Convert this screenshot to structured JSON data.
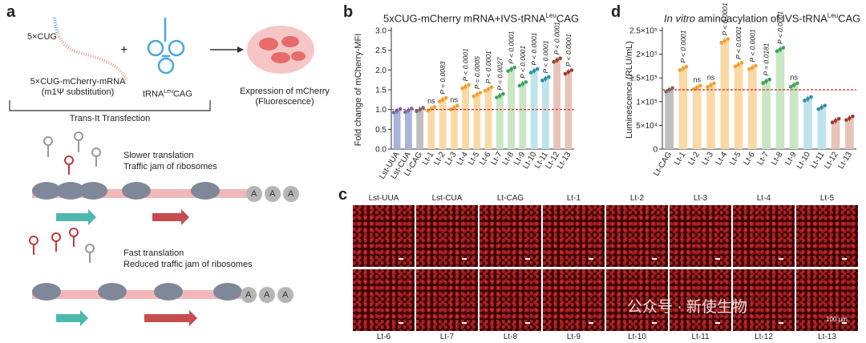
{
  "panels": {
    "a": "a",
    "b": "b",
    "c": "c",
    "d": "d"
  },
  "panel_a": {
    "mrna_label": "5×CUG",
    "mrna_name": "5×CUG-mCherry-mRNA",
    "mrna_sub": "(m1Ψ substitution)",
    "plus": "+",
    "trna": "tRNA",
    "trna_sup": "Leu",
    "trna_suffix": "CAG",
    "expression_line1": "Expression of mCherry",
    "expression_line2": "(Fluorescence)",
    "transfection": "Trans-It Transfection",
    "slow_line1": "Slower translation",
    "slow_line2": "Traffic jam of ribosomes",
    "fast_line1": "Fast translation",
    "fast_line2": "Reduced traffic jam of ribosomes",
    "polya": [
      "A",
      "A",
      "A"
    ]
  },
  "panel_c": {
    "top_labels": [
      "Lst-UUA",
      "Lst-CUA",
      "Lt-CAG",
      "Lt-1",
      "Lt-2",
      "Lt-3",
      "Lt-4",
      "Lt-5"
    ],
    "bottom_labels": [
      "Lt-6",
      "Lt-7",
      "Lt-8",
      "Lt-9",
      "Lt-10",
      "Lt-11",
      "Lt-12",
      "Lt-13"
    ],
    "scale_bar": "100 μm",
    "watermark": "公众号 · 新使生物"
  },
  "chart_data": [
    {
      "type": "bar",
      "title_prefix": "5xCUG-mCherry mRNA+IVS-tRNA",
      "title_sup": "Leu",
      "title_suffix": "CAG",
      "ylabel": "Fold change of mCherry-MFI",
      "ylim": [
        0,
        3.0
      ],
      "yticks": [
        "0.0",
        "0.5",
        "1.0",
        "1.5",
        "2.0",
        "2.5",
        "3.0"
      ],
      "reference_line": 1.0,
      "categories": [
        "Lst-UUA",
        "Lst-CUA",
        "Lt-CAG",
        "Lt-1",
        "Lt-2",
        "Lt-3",
        "Lt-4",
        "Lt-5",
        "Lt-6",
        "Lt-7",
        "Lt-8",
        "Lt-9",
        "Lt-10",
        "Lt-11",
        "Lt-12",
        "Lt-13"
      ],
      "values": [
        0.97,
        0.98,
        1.0,
        1.02,
        1.25,
        1.05,
        1.58,
        1.38,
        1.52,
        1.35,
        2.02,
        1.65,
        1.98,
        1.78,
        2.25,
        1.95
      ],
      "annotations": [
        "",
        "",
        "",
        "ns",
        "P = 0.0083",
        "ns",
        "P < 0.0001",
        "P = 0.0005",
        "P < 0.0001",
        "P = 0.0027",
        "P < 0.0001",
        "P < 0.0001",
        "P < 0.0001",
        "P < 0.0001",
        "P < 0.0001",
        "P < 0.0001"
      ],
      "colors": [
        "#a9b3dc",
        "#a9b3dc",
        "#bfbfbf",
        "#fbd9a7",
        "#fbd9a7",
        "#fbd9a7",
        "#fbd9a7",
        "#fbd9a7",
        "#fbd9a7",
        "#c9e6c5",
        "#c9e6c5",
        "#c9e6c5",
        "#bfe3ea",
        "#bfe3ea",
        "#e8c4b8",
        "#e8c4b8"
      ],
      "point_colors": [
        "#6b6fb0",
        "#6b6fb0",
        "#6e6e6e",
        "#f0a030",
        "#f0a030",
        "#f0a030",
        "#f0a030",
        "#f0a030",
        "#f0a030",
        "#3aa35a",
        "#3aa35a",
        "#3aa35a",
        "#2f8fa5",
        "#2f8fa5",
        "#9e3b2a",
        "#9e3b2a"
      ]
    },
    {
      "type": "bar",
      "title_italic": "In vitro",
      "title_prefix": " aminoacylation of IVS-tRNA",
      "title_sup": "Leu",
      "title_suffix": "CAG",
      "ylabel": "Luminescence (RLU/mL)",
      "ylim": [
        0,
        250000
      ],
      "yticks": [
        "0",
        "5×10⁴",
        "1×10⁵",
        "1.5×10⁵",
        "2×10⁵",
        "2.5×10⁵"
      ],
      "reference_line": 125000,
      "categories": [
        "Lt-CAG",
        "Lt-1",
        "Lt-2",
        "Lt-3",
        "Lt-4",
        "Lt-5",
        "Lt-6",
        "Lt-7",
        "Lt-8",
        "Lt-9",
        "Lt-10",
        "Lt-11",
        "Lt-12",
        "Lt-13"
      ],
      "values": [
        125000,
        170000,
        130000,
        135000,
        228000,
        178000,
        172000,
        143000,
        210000,
        135000,
        106000,
        88000,
        60000,
        65000
      ],
      "annotations": [
        "",
        "P < 0.0001",
        "ns",
        "ns",
        "P < 0.0001",
        "P < 0.0001",
        "P < 0.0001",
        "P = 0.0181",
        "P < 0.0001",
        "ns",
        "",
        "",
        "",
        ""
      ],
      "colors": [
        "#bfbfbf",
        "#fbd9a7",
        "#fbd9a7",
        "#fbd9a7",
        "#fbd9a7",
        "#fbd9a7",
        "#fbd9a7",
        "#c9e6c5",
        "#c9e6c5",
        "#c9e6c5",
        "#bfe3ea",
        "#bfe3ea",
        "#e8c4b8",
        "#e8c4b8"
      ],
      "point_colors": [
        "#6e6e6e",
        "#f0a030",
        "#f0a030",
        "#f0a030",
        "#f0a030",
        "#f0a030",
        "#f0a030",
        "#3aa35a",
        "#3aa35a",
        "#3aa35a",
        "#2f8fa5",
        "#2f8fa5",
        "#9e3b2a",
        "#9e3b2a"
      ]
    }
  ]
}
